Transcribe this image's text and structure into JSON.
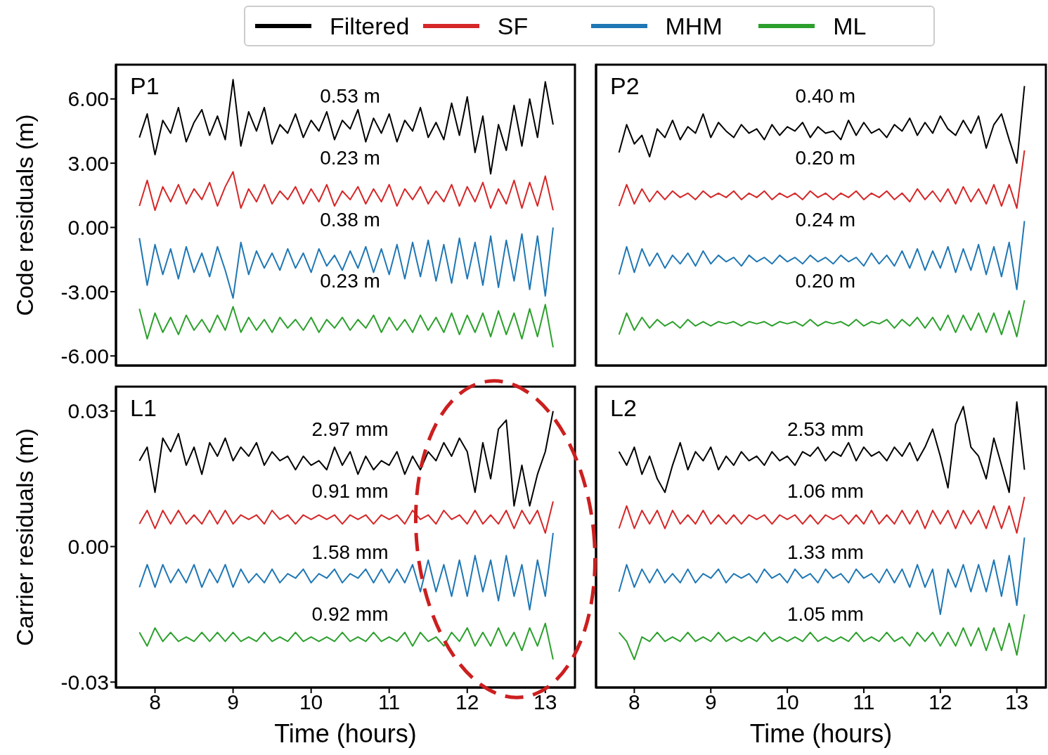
{
  "chart_data": [
    {
      "type": "line",
      "legend": "top",
      "tick_labels": "y",
      "ylabel": "Code residuals (m)",
      "xlim": [
        7.5,
        13.38
      ],
      "xticks": [
        8,
        9,
        10,
        11,
        12,
        13
      ],
      "ylim": [
        -6.45,
        7.6
      ],
      "yticks": [
        {
          "value": -6,
          "label": "-6.00"
        },
        {
          "value": -3,
          "label": "-3.00"
        },
        {
          "value": 0,
          "label": "0.00"
        },
        {
          "value": 3,
          "label": "3.00"
        },
        {
          "value": 6,
          "label": "6.00"
        }
      ],
      "annotations": [
        "P1",
        "0.53 m",
        "0.23 m",
        "0.38 m",
        "0.23 m"
      ],
      "x": [
        7.8,
        7.9,
        8.0,
        8.1,
        8.2,
        8.3,
        8.4,
        8.5,
        8.6,
        8.7,
        8.8,
        8.9,
        9.0,
        9.1,
        9.2,
        9.3,
        9.4,
        9.5,
        9.6,
        9.7,
        9.8,
        9.9,
        10.0,
        10.1,
        10.2,
        10.3,
        10.4,
        10.5,
        10.6,
        10.7,
        10.8,
        10.9,
        11.0,
        11.1,
        11.2,
        11.3,
        11.4,
        11.5,
        11.6,
        11.7,
        11.8,
        11.9,
        12.0,
        12.1,
        12.2,
        12.3,
        12.4,
        12.5,
        12.6,
        12.7,
        12.8,
        12.9,
        13.0,
        13.1
      ],
      "series": [
        {
          "name": "Filtered",
          "color": "#000000",
          "values": [
            4.2,
            5.3,
            3.4,
            5.0,
            4.4,
            5.6,
            4.0,
            4.9,
            5.5,
            4.3,
            5.2,
            4.1,
            6.9,
            3.8,
            5.4,
            4.5,
            5.6,
            3.9,
            4.8,
            4.4,
            5.3,
            4.2,
            5.0,
            4.5,
            5.4,
            4.1,
            5.0,
            4.6,
            5.5,
            4.0,
            5.1,
            4.4,
            5.3,
            4.0,
            5.0,
            4.5,
            5.6,
            4.2,
            4.9,
            4.1,
            5.8,
            4.3,
            6.1,
            3.5,
            5.2,
            2.5,
            4.8,
            3.6,
            5.7,
            3.8,
            6.0,
            4.2,
            6.8,
            4.8
          ]
        },
        {
          "name": "SF",
          "color": "#d62728",
          "values": [
            1.0,
            2.2,
            0.8,
            1.9,
            1.2,
            2.0,
            1.1,
            1.8,
            1.3,
            2.1,
            1.0,
            1.9,
            2.6,
            0.9,
            1.8,
            1.2,
            2.0,
            1.1,
            1.7,
            1.3,
            1.9,
            1.1,
            1.8,
            1.2,
            2.0,
            1.0,
            1.7,
            1.3,
            1.9,
            1.1,
            1.8,
            1.2,
            2.0,
            1.0,
            1.8,
            1.3,
            1.9,
            1.1,
            1.7,
            1.2,
            2.0,
            1.0,
            1.9,
            1.2,
            2.1,
            0.9,
            1.8,
            1.1,
            2.2,
            0.9,
            2.1,
            1.0,
            2.4,
            0.8
          ]
        },
        {
          "name": "MHM",
          "color": "#1f77b4",
          "values": [
            -0.5,
            -2.7,
            -0.8,
            -2.2,
            -1.0,
            -2.4,
            -0.9,
            -2.1,
            -1.2,
            -2.3,
            -0.9,
            -2.0,
            -3.3,
            -0.7,
            -2.2,
            -1.1,
            -1.9,
            -1.2,
            -2.0,
            -1.0,
            -1.9,
            -1.2,
            -2.1,
            -1.0,
            -1.8,
            -1.3,
            -2.0,
            -1.1,
            -1.9,
            -0.9,
            -2.1,
            -1.0,
            -2.2,
            -0.8,
            -2.4,
            -0.7,
            -2.3,
            -0.6,
            -2.5,
            -0.8,
            -2.6,
            -0.5,
            -2.4,
            -0.7,
            -2.7,
            -0.4,
            -2.8,
            -0.6,
            -2.5,
            -0.3,
            -2.9,
            -0.4,
            -3.2,
            0.0
          ]
        },
        {
          "name": "ML",
          "color": "#2ca02c",
          "values": [
            -3.8,
            -5.2,
            -4.0,
            -4.9,
            -4.2,
            -5.0,
            -4.1,
            -4.8,
            -4.3,
            -4.9,
            -4.1,
            -4.8,
            -3.7,
            -4.9,
            -4.2,
            -4.8,
            -4.3,
            -4.9,
            -4.2,
            -4.7,
            -4.3,
            -4.8,
            -4.2,
            -4.9,
            -4.3,
            -4.7,
            -4.2,
            -4.8,
            -4.3,
            -4.7,
            -4.1,
            -4.9,
            -4.2,
            -4.8,
            -4.3,
            -4.9,
            -4.1,
            -4.8,
            -4.2,
            -4.9,
            -4.0,
            -5.0,
            -4.1,
            -4.9,
            -4.0,
            -5.1,
            -3.9,
            -5.0,
            -4.0,
            -5.2,
            -3.8,
            -5.1,
            -3.6,
            -5.6
          ]
        }
      ]
    },
    {
      "type": "line",
      "tick_labels": false,
      "xlim": [
        7.5,
        13.38
      ],
      "xticks": [
        8,
        9,
        10,
        11,
        12,
        13
      ],
      "ylim": [
        -6.45,
        7.6
      ],
      "yticks": [
        -6,
        -3,
        0,
        3,
        6
      ],
      "annotations": [
        "P2",
        "0.40 m",
        "0.20 m",
        "0.24 m",
        "0.20 m"
      ],
      "x": [
        7.8,
        7.9,
        8.0,
        8.1,
        8.2,
        8.3,
        8.4,
        8.5,
        8.6,
        8.7,
        8.8,
        8.9,
        9.0,
        9.1,
        9.2,
        9.3,
        9.4,
        9.5,
        9.6,
        9.7,
        9.8,
        9.9,
        10.0,
        10.1,
        10.2,
        10.3,
        10.4,
        10.5,
        10.6,
        10.7,
        10.8,
        10.9,
        11.0,
        11.1,
        11.2,
        11.3,
        11.4,
        11.5,
        11.6,
        11.7,
        11.8,
        11.9,
        12.0,
        12.1,
        12.2,
        12.3,
        12.4,
        12.5,
        12.6,
        12.7,
        12.8,
        12.9,
        13.0,
        13.1
      ],
      "series": [
        {
          "color": "#000000",
          "values": [
            3.5,
            4.8,
            3.9,
            4.3,
            3.3,
            4.6,
            4.2,
            5.0,
            4.1,
            4.7,
            4.4,
            5.3,
            4.2,
            4.9,
            4.5,
            4.2,
            4.8,
            4.4,
            4.6,
            4.1,
            4.8,
            4.3,
            4.7,
            4.5,
            4.9,
            4.2,
            4.7,
            4.4,
            4.5,
            4.1,
            5.0,
            4.3,
            4.9,
            4.4,
            4.6,
            4.2,
            4.8,
            4.5,
            5.1,
            4.3,
            4.9,
            4.4,
            5.2,
            4.6,
            4.3,
            5.0,
            4.4,
            5.2,
            3.7,
            4.8,
            5.3,
            4.1,
            3.0,
            6.6
          ]
        },
        {
          "color": "#d62728",
          "values": [
            1.0,
            2.0,
            1.1,
            1.8,
            1.2,
            1.7,
            1.3,
            1.7,
            1.4,
            1.6,
            1.3,
            1.7,
            1.4,
            1.6,
            1.4,
            1.7,
            1.3,
            1.6,
            1.4,
            1.7,
            1.3,
            1.6,
            1.4,
            1.6,
            1.3,
            1.7,
            1.4,
            1.6,
            1.3,
            1.6,
            1.4,
            1.7,
            1.3,
            1.6,
            1.4,
            1.7,
            1.3,
            1.6,
            1.2,
            1.8,
            1.3,
            1.7,
            1.2,
            1.8,
            1.1,
            1.9,
            1.2,
            1.8,
            1.1,
            2.0,
            1.0,
            2.0,
            0.9,
            3.6
          ]
        },
        {
          "color": "#1f77b4",
          "values": [
            -2.2,
            -0.9,
            -2.1,
            -1.0,
            -1.8,
            -1.2,
            -1.9,
            -1.3,
            -1.7,
            -1.2,
            -1.8,
            -1.1,
            -1.7,
            -1.3,
            -1.6,
            -1.4,
            -1.8,
            -1.3,
            -1.6,
            -1.4,
            -1.7,
            -1.3,
            -1.6,
            -1.4,
            -1.7,
            -1.3,
            -1.6,
            -1.4,
            -1.7,
            -1.3,
            -1.6,
            -1.4,
            -1.8,
            -1.2,
            -1.7,
            -1.3,
            -1.8,
            -1.1,
            -1.9,
            -1.0,
            -2.0,
            -1.1,
            -1.9,
            -0.9,
            -2.1,
            -1.0,
            -2.0,
            -0.8,
            -2.2,
            -0.9,
            -2.3,
            -0.7,
            -2.9,
            0.3
          ]
        },
        {
          "color": "#2ca02c",
          "values": [
            -5.0,
            -4.0,
            -4.8,
            -4.2,
            -4.7,
            -4.3,
            -4.6,
            -4.4,
            -4.7,
            -4.3,
            -4.6,
            -4.4,
            -4.6,
            -4.4,
            -4.5,
            -4.4,
            -4.6,
            -4.4,
            -4.5,
            -4.4,
            -4.6,
            -4.4,
            -4.5,
            -4.4,
            -4.6,
            -4.3,
            -4.6,
            -4.4,
            -4.5,
            -4.4,
            -4.6,
            -4.3,
            -4.6,
            -4.4,
            -4.5,
            -4.3,
            -4.7,
            -4.3,
            -4.6,
            -4.2,
            -4.7,
            -4.2,
            -4.8,
            -4.1,
            -4.9,
            -4.1,
            -4.8,
            -4.0,
            -4.9,
            -4.0,
            -5.0,
            -3.9,
            -5.1,
            -3.4
          ]
        }
      ]
    },
    {
      "type": "line",
      "ylabel": "Carrier residuals (m)",
      "xlabel": "Time (hours)",
      "xlim": [
        7.5,
        13.38
      ],
      "xticks": [
        8,
        9,
        10,
        11,
        12,
        13
      ],
      "ylim": [
        -0.0312,
        0.0354
      ],
      "yticks": [
        -0.03,
        {
          "value": 0,
          "label": "0.00"
        },
        0.03
      ],
      "annotations": [
        "L1",
        "2.97 mm",
        "0.91 mm",
        "1.58 mm",
        "0.92 mm"
      ],
      "x": [
        7.8,
        7.9,
        8.0,
        8.1,
        8.2,
        8.3,
        8.4,
        8.5,
        8.6,
        8.7,
        8.8,
        8.9,
        9.0,
        9.1,
        9.2,
        9.3,
        9.4,
        9.5,
        9.6,
        9.7,
        9.8,
        9.9,
        10.0,
        10.1,
        10.2,
        10.3,
        10.4,
        10.5,
        10.6,
        10.7,
        10.8,
        10.9,
        11.0,
        11.1,
        11.2,
        11.3,
        11.4,
        11.5,
        11.6,
        11.7,
        11.8,
        11.9,
        12.0,
        12.1,
        12.2,
        12.3,
        12.4,
        12.5,
        12.6,
        12.7,
        12.8,
        12.9,
        13.0,
        13.1
      ],
      "series": [
        {
          "color": "#000000",
          "values": [
            0.019,
            0.022,
            0.012,
            0.024,
            0.021,
            0.025,
            0.018,
            0.022,
            0.016,
            0.023,
            0.02,
            0.024,
            0.019,
            0.022,
            0.02,
            0.023,
            0.018,
            0.021,
            0.019,
            0.02,
            0.017,
            0.02,
            0.018,
            0.019,
            0.017,
            0.022,
            0.018,
            0.021,
            0.016,
            0.02,
            0.017,
            0.019,
            0.018,
            0.021,
            0.016,
            0.02,
            0.017,
            0.021,
            0.019,
            0.023,
            0.02,
            0.024,
            0.021,
            0.012,
            0.023,
            0.015,
            0.026,
            0.028,
            0.009,
            0.018,
            0.009,
            0.016,
            0.021,
            0.03
          ]
        },
        {
          "color": "#d62728",
          "values": [
            0.005,
            0.008,
            0.004,
            0.008,
            0.005,
            0.008,
            0.005,
            0.007,
            0.005,
            0.008,
            0.005,
            0.008,
            0.005,
            0.007,
            0.006,
            0.007,
            0.005,
            0.008,
            0.006,
            0.007,
            0.005,
            0.007,
            0.006,
            0.007,
            0.006,
            0.007,
            0.005,
            0.007,
            0.006,
            0.007,
            0.005,
            0.007,
            0.006,
            0.007,
            0.005,
            0.008,
            0.006,
            0.007,
            0.005,
            0.008,
            0.006,
            0.007,
            0.005,
            0.008,
            0.005,
            0.007,
            0.005,
            0.008,
            0.004,
            0.008,
            0.005,
            0.008,
            0.003,
            0.01
          ]
        },
        {
          "color": "#1f77b4",
          "values": [
            -0.009,
            -0.004,
            -0.009,
            -0.004,
            -0.008,
            -0.005,
            -0.008,
            -0.004,
            -0.009,
            -0.005,
            -0.008,
            -0.004,
            -0.009,
            -0.005,
            -0.008,
            -0.006,
            -0.008,
            -0.005,
            -0.008,
            -0.006,
            -0.007,
            -0.005,
            -0.008,
            -0.006,
            -0.007,
            -0.005,
            -0.008,
            -0.006,
            -0.007,
            -0.005,
            -0.008,
            -0.005,
            -0.008,
            -0.005,
            -0.008,
            -0.004,
            -0.01,
            -0.003,
            -0.01,
            -0.004,
            -0.011,
            -0.003,
            -0.011,
            -0.002,
            -0.01,
            -0.003,
            -0.012,
            -0.002,
            -0.011,
            -0.004,
            -0.014,
            -0.003,
            -0.011,
            0.003
          ]
        },
        {
          "color": "#2ca02c",
          "values": [
            -0.019,
            -0.022,
            -0.018,
            -0.021,
            -0.019,
            -0.021,
            -0.02,
            -0.021,
            -0.019,
            -0.021,
            -0.019,
            -0.021,
            -0.019,
            -0.021,
            -0.02,
            -0.021,
            -0.019,
            -0.021,
            -0.02,
            -0.021,
            -0.019,
            -0.021,
            -0.02,
            -0.021,
            -0.02,
            -0.021,
            -0.019,
            -0.021,
            -0.02,
            -0.021,
            -0.019,
            -0.021,
            -0.02,
            -0.021,
            -0.019,
            -0.022,
            -0.019,
            -0.021,
            -0.02,
            -0.022,
            -0.019,
            -0.021,
            -0.018,
            -0.022,
            -0.019,
            -0.022,
            -0.018,
            -0.022,
            -0.019,
            -0.023,
            -0.018,
            -0.022,
            -0.017,
            -0.025
          ]
        }
      ]
    },
    {
      "type": "line",
      "tick_labels": "x",
      "xlabel": "Time (hours)",
      "xlim": [
        7.5,
        13.38
      ],
      "xticks": [
        8,
        9,
        10,
        11,
        12,
        13
      ],
      "ylim": [
        -0.0312,
        0.0354
      ],
      "yticks": [
        -0.03,
        0,
        0.03
      ],
      "annotations": [
        "L2",
        "2.53 mm",
        "1.06 mm",
        "1.33 mm",
        "1.05 mm"
      ],
      "x": [
        7.8,
        7.9,
        8.0,
        8.1,
        8.2,
        8.3,
        8.4,
        8.5,
        8.6,
        8.7,
        8.8,
        8.9,
        9.0,
        9.1,
        9.2,
        9.3,
        9.4,
        9.5,
        9.6,
        9.7,
        9.8,
        9.9,
        10.0,
        10.1,
        10.2,
        10.3,
        10.4,
        10.5,
        10.6,
        10.7,
        10.8,
        10.9,
        11.0,
        11.1,
        11.2,
        11.3,
        11.4,
        11.5,
        11.6,
        11.7,
        11.8,
        11.9,
        12.0,
        12.1,
        12.2,
        12.3,
        12.4,
        12.5,
        12.6,
        12.7,
        12.8,
        12.9,
        13.0,
        13.1
      ],
      "series": [
        {
          "color": "#000000",
          "values": [
            0.021,
            0.018,
            0.022,
            0.016,
            0.02,
            0.015,
            0.012,
            0.018,
            0.023,
            0.017,
            0.021,
            0.019,
            0.022,
            0.017,
            0.02,
            0.018,
            0.021,
            0.019,
            0.02,
            0.018,
            0.021,
            0.019,
            0.02,
            0.018,
            0.021,
            0.02,
            0.022,
            0.019,
            0.021,
            0.02,
            0.023,
            0.019,
            0.022,
            0.02,
            0.021,
            0.019,
            0.022,
            0.02,
            0.023,
            0.019,
            0.022,
            0.026,
            0.02,
            0.013,
            0.027,
            0.031,
            0.022,
            0.02,
            0.015,
            0.024,
            0.018,
            0.012,
            0.032,
            0.017
          ]
        },
        {
          "color": "#d62728",
          "values": [
            0.004,
            0.009,
            0.004,
            0.008,
            0.005,
            0.008,
            0.004,
            0.008,
            0.005,
            0.007,
            0.005,
            0.008,
            0.005,
            0.007,
            0.005,
            0.007,
            0.005,
            0.007,
            0.006,
            0.007,
            0.005,
            0.007,
            0.006,
            0.007,
            0.005,
            0.007,
            0.005,
            0.007,
            0.006,
            0.007,
            0.005,
            0.007,
            0.005,
            0.008,
            0.005,
            0.007,
            0.005,
            0.008,
            0.005,
            0.008,
            0.004,
            0.008,
            0.005,
            0.008,
            0.004,
            0.008,
            0.005,
            0.008,
            0.004,
            0.009,
            0.004,
            0.009,
            0.003,
            0.011
          ]
        },
        {
          "color": "#1f77b4",
          "values": [
            -0.01,
            -0.004,
            -0.009,
            -0.005,
            -0.008,
            -0.005,
            -0.008,
            -0.006,
            -0.008,
            -0.005,
            -0.008,
            -0.006,
            -0.007,
            -0.005,
            -0.008,
            -0.006,
            -0.007,
            -0.006,
            -0.008,
            -0.005,
            -0.007,
            -0.006,
            -0.008,
            -0.005,
            -0.007,
            -0.006,
            -0.008,
            -0.005,
            -0.007,
            -0.006,
            -0.008,
            -0.005,
            -0.007,
            -0.006,
            -0.008,
            -0.005,
            -0.008,
            -0.005,
            -0.009,
            -0.004,
            -0.009,
            -0.005,
            -0.015,
            -0.005,
            -0.009,
            -0.004,
            -0.01,
            -0.004,
            -0.01,
            -0.003,
            -0.011,
            -0.002,
            -0.013,
            0.002
          ]
        },
        {
          "color": "#2ca02c",
          "values": [
            -0.019,
            -0.021,
            -0.025,
            -0.02,
            -0.021,
            -0.019,
            -0.021,
            -0.02,
            -0.021,
            -0.019,
            -0.021,
            -0.02,
            -0.021,
            -0.019,
            -0.021,
            -0.02,
            -0.021,
            -0.02,
            -0.021,
            -0.019,
            -0.021,
            -0.02,
            -0.021,
            -0.02,
            -0.021,
            -0.019,
            -0.021,
            -0.02,
            -0.021,
            -0.02,
            -0.021,
            -0.019,
            -0.021,
            -0.02,
            -0.021,
            -0.019,
            -0.021,
            -0.02,
            -0.022,
            -0.019,
            -0.021,
            -0.019,
            -0.022,
            -0.019,
            -0.022,
            -0.018,
            -0.022,
            -0.018,
            -0.023,
            -0.018,
            -0.023,
            -0.017,
            -0.024,
            -0.015
          ]
        }
      ]
    }
  ]
}
